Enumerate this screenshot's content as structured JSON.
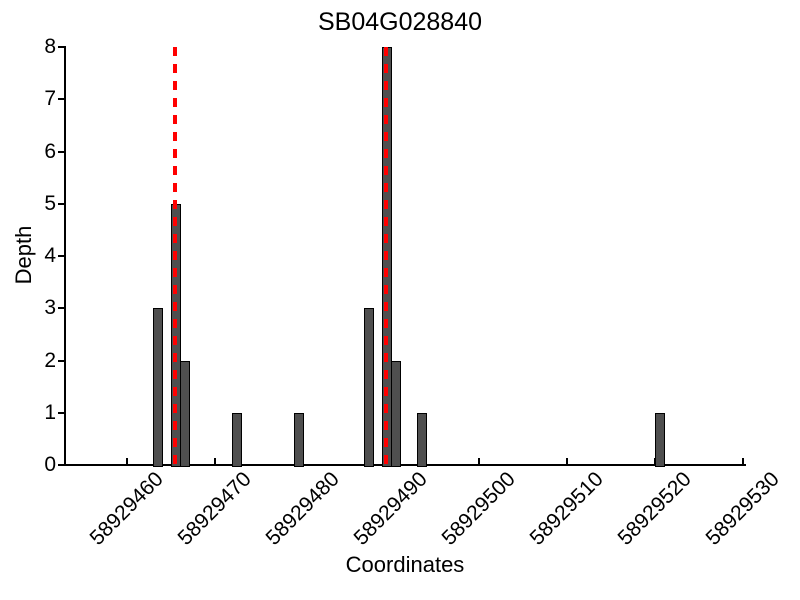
{
  "chart_data": {
    "type": "bar",
    "title": "SB04G028840",
    "xlabel": "Coordinates",
    "ylabel": "Depth",
    "x_ticks": [
      58929460,
      58929470,
      58929480,
      58929490,
      58929500,
      58929510,
      58929520,
      58929530
    ],
    "y_ticks": [
      0,
      1,
      2,
      3,
      4,
      5,
      6,
      7,
      8
    ],
    "xlim": [
      58929453,
      58929530
    ],
    "ylim": [
      0,
      8
    ],
    "grid": false,
    "legend": false,
    "bars": [
      {
        "coordinate": 58929463,
        "depth": 3
      },
      {
        "coordinate": 58929465,
        "depth": 5
      },
      {
        "coordinate": 58929466,
        "depth": 2
      },
      {
        "coordinate": 58929472,
        "depth": 1
      },
      {
        "coordinate": 58929479,
        "depth": 1
      },
      {
        "coordinate": 58929487,
        "depth": 3
      },
      {
        "coordinate": 58929489,
        "depth": 8
      },
      {
        "coordinate": 58929490,
        "depth": 2
      },
      {
        "coordinate": 58929493,
        "depth": 1
      },
      {
        "coordinate": 58929520,
        "depth": 1
      }
    ],
    "marker_lines": [
      {
        "position": 58929465.5,
        "style": "dashed"
      },
      {
        "position": 58929489.5,
        "style": "dashed"
      }
    ],
    "colors": {
      "bar_fill": "#4f4f4f",
      "bar_edge": "#000000",
      "marker": "#ff0000",
      "axis": "#000000",
      "background": "#ffffff"
    }
  }
}
